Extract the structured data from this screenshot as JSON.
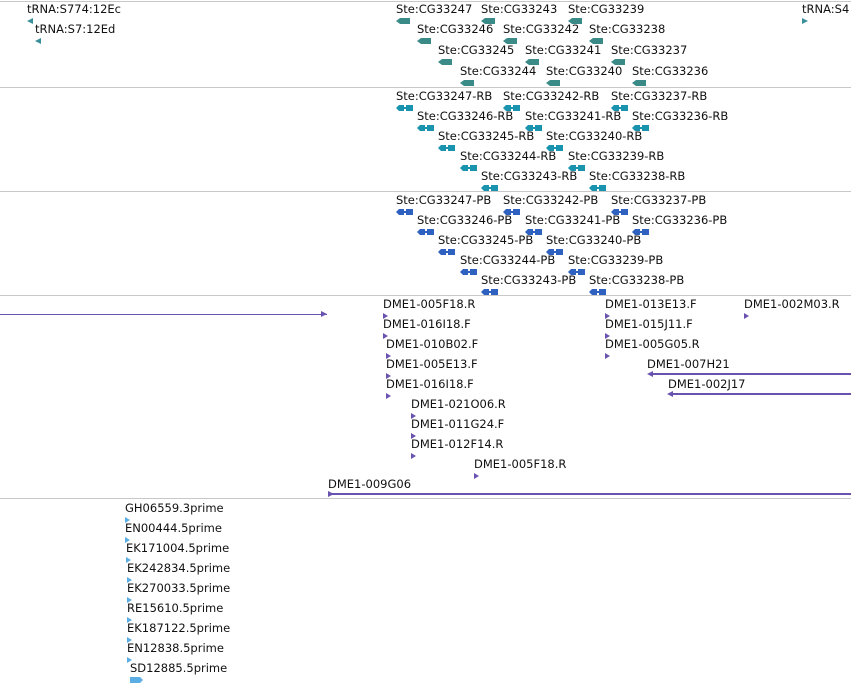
{
  "colors": {
    "trna": "#3a8f9a",
    "gene": "#3a8a88",
    "rna": "#1a93ae",
    "protein": "#2f62c0",
    "clone": "#6a52b0",
    "est": "#5aaee3",
    "separator": "#c8c8c8"
  },
  "tracks": {
    "trna": [
      {
        "label": "tRNA:S774:12Ec",
        "glyph": "left-triangle-icon"
      },
      {
        "label": "tRNA:S7:12Ed",
        "glyph": "left-triangle-icon"
      },
      {
        "label": "tRNA:S4",
        "glyph": "right-triangle-icon"
      }
    ],
    "genes": [
      {
        "label": "Ste:CG33247"
      },
      {
        "label": "Ste:CG33243"
      },
      {
        "label": "Ste:CG33239"
      },
      {
        "label": "Ste:CG33246"
      },
      {
        "label": "Ste:CG33242"
      },
      {
        "label": "Ste:CG33238"
      },
      {
        "label": "Ste:CG33245"
      },
      {
        "label": "Ste:CG33241"
      },
      {
        "label": "Ste:CG33237"
      },
      {
        "label": "Ste:CG33244"
      },
      {
        "label": "Ste:CG33240"
      },
      {
        "label": "Ste:CG33236"
      }
    ],
    "transcripts": [
      {
        "label": "Ste:CG33247-RB"
      },
      {
        "label": "Ste:CG33242-RB"
      },
      {
        "label": "Ste:CG33237-RB"
      },
      {
        "label": "Ste:CG33246-RB"
      },
      {
        "label": "Ste:CG33241-RB"
      },
      {
        "label": "Ste:CG33236-RB"
      },
      {
        "label": "Ste:CG33245-RB"
      },
      {
        "label": "Ste:CG33240-RB"
      },
      {
        "label": "Ste:CG33244-RB"
      },
      {
        "label": "Ste:CG33239-RB"
      },
      {
        "label": "Ste:CG33243-RB"
      },
      {
        "label": "Ste:CG33238-RB"
      }
    ],
    "proteins": [
      {
        "label": "Ste:CG33247-PB"
      },
      {
        "label": "Ste:CG33242-PB"
      },
      {
        "label": "Ste:CG33237-PB"
      },
      {
        "label": "Ste:CG33246-PB"
      },
      {
        "label": "Ste:CG33241-PB"
      },
      {
        "label": "Ste:CG33236-PB"
      },
      {
        "label": "Ste:CG33245-PB"
      },
      {
        "label": "Ste:CG33240-PB"
      },
      {
        "label": "Ste:CG33244-PB"
      },
      {
        "label": "Ste:CG33239-PB"
      },
      {
        "label": "Ste:CG33243-PB"
      },
      {
        "label": "Ste:CG33238-PB"
      }
    ],
    "clones": [
      {
        "label": "DME1-005F18.R"
      },
      {
        "label": "DME1-013E13.F"
      },
      {
        "label": "DME1-002M03.R"
      },
      {
        "label": "DME1-016I18.F"
      },
      {
        "label": "DME1-015J11.F"
      },
      {
        "label": "DME1-010B02.F"
      },
      {
        "label": "DME1-005G05.R"
      },
      {
        "label": "DME1-005E13.F"
      },
      {
        "label": "DME1-007H21"
      },
      {
        "label": "DME1-016I18.F"
      },
      {
        "label": "DME1-002J17"
      },
      {
        "label": "DME1-021O06.R"
      },
      {
        "label": "DME1-011G24.F"
      },
      {
        "label": "DME1-012F14.R"
      },
      {
        "label": "DME1-005F18.R"
      },
      {
        "label": "DME1-009G06"
      }
    ],
    "ests": [
      {
        "label": "GH06559.3prime"
      },
      {
        "label": "EN00444.5prime"
      },
      {
        "label": "EK171004.5prime"
      },
      {
        "label": "EK242834.5prime"
      },
      {
        "label": "EK270033.5prime"
      },
      {
        "label": "RE15610.5prime"
      },
      {
        "label": "EK187122.5prime"
      },
      {
        "label": "EN12838.5prime"
      },
      {
        "label": "SD12885.5prime"
      }
    ]
  }
}
